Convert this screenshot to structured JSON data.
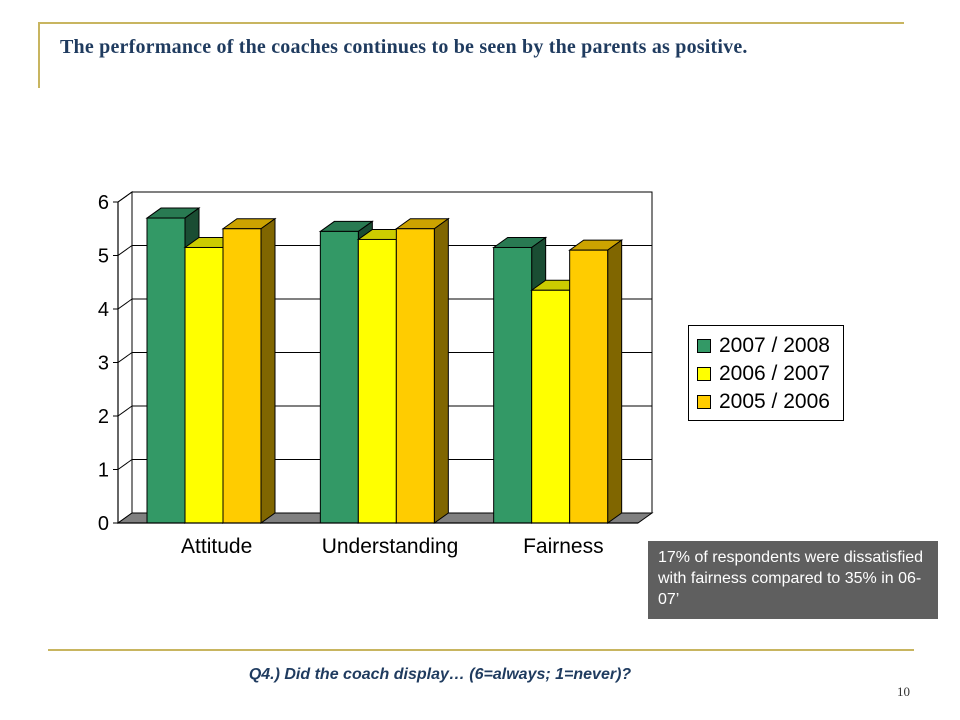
{
  "slide": {
    "title": "The performance of the coaches continues to be seen by the parents as positive.",
    "callout": "17% of respondents were dissatisfied with fairness compared to 35% in 06-07’",
    "question": "Q4.) Did the coach display… (6=always; 1=never)?",
    "page_number": "10"
  },
  "chart_data": {
    "type": "bar",
    "categories": [
      "Attitude",
      "Understanding",
      "Fairness"
    ],
    "series": [
      {
        "name": "2007 / 2008",
        "values": [
          5.7,
          5.45,
          5.15
        ],
        "color": "#339966"
      },
      {
        "name": "2006 / 2007",
        "values": [
          5.15,
          5.3,
          4.35
        ],
        "color": "#ffff00"
      },
      {
        "name": "2005 / 2006",
        "values": [
          5.5,
          5.5,
          5.1
        ],
        "color": "#ffcc00"
      }
    ],
    "yticks": [
      "0",
      "1",
      "2",
      "3",
      "4",
      "5",
      "6"
    ],
    "ylim": [
      0,
      6
    ],
    "grid": true,
    "legend_position": "right"
  }
}
